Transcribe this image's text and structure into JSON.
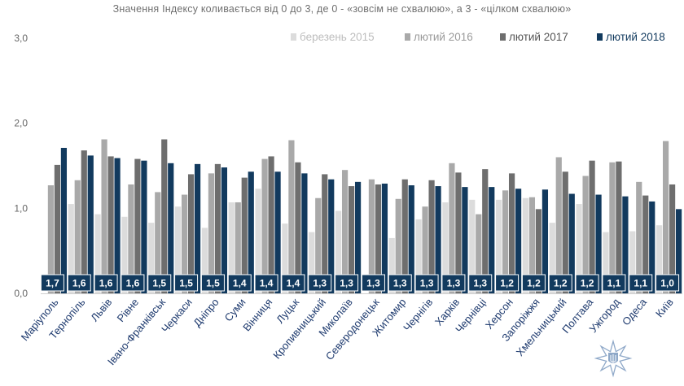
{
  "subtitle": "Значення Індексу коливається від 0 до 3, де 0 - «зовсім не схвалюю», а 3 - «цілком схвалюю»",
  "colors": {
    "s2015": "#dcdcdc",
    "s2016": "#a9a9a9",
    "s2017": "#6e6e6e",
    "s2018": "#123a5e",
    "label_box": "#123a5e",
    "category_text": "#1f3b6f",
    "axis_text": "#666666"
  },
  "emblem": {
    "name": "police-emblem",
    "color": "#8ea8c8"
  },
  "chart_data": {
    "type": "bar",
    "title": "",
    "xlabel": "",
    "ylabel": "",
    "ylim": [
      0,
      3
    ],
    "yticks": [
      0,
      1,
      2,
      3
    ],
    "ytick_labels": [
      "0,0",
      "1,0",
      "2,0",
      "3,0"
    ],
    "grid": false,
    "legend_position": "top-right",
    "categories": [
      "Маріуполь",
      "Тернопіль",
      "Львів",
      "Рівне",
      "Івано-Франківськ",
      "Черкаси",
      "Дніпро",
      "Суми",
      "Вінниця",
      "Луцьк",
      "Кропивницький",
      "Миколаїв",
      "Северодонецьк",
      "Житомир",
      "Чернігів",
      "Харків",
      "Чернівці",
      "Херсон",
      "Запоріжжя",
      "Хмельницький",
      "Полтава",
      "Ужгород",
      "Одеса",
      "Київ"
    ],
    "series": [
      {
        "name": "березень 2015",
        "values": [
          null,
          1.05,
          0.93,
          0.9,
          0.83,
          1.02,
          0.77,
          1.07,
          1.23,
          0.82,
          0.72,
          0.97,
          null,
          0.65,
          0.87,
          1.07,
          1.1,
          1.1,
          1.12,
          0.83,
          1.05,
          0.72,
          0.73,
          0.8
        ]
      },
      {
        "name": "лютий 2016",
        "values": [
          1.27,
          1.33,
          1.81,
          1.28,
          1.19,
          1.16,
          1.41,
          1.07,
          1.58,
          1.8,
          1.12,
          1.45,
          1.34,
          1.11,
          1.02,
          1.53,
          0.93,
          1.21,
          1.13,
          1.6,
          1.38,
          1.54,
          1.31,
          1.79
        ]
      },
      {
        "name": "лютий 2017",
        "values": [
          1.51,
          1.68,
          1.61,
          1.58,
          1.81,
          1.4,
          1.52,
          1.36,
          1.61,
          1.54,
          1.4,
          1.26,
          1.28,
          1.34,
          1.33,
          1.42,
          1.46,
          1.41,
          0.99,
          1.43,
          1.56,
          1.55,
          1.15,
          1.28
        ]
      },
      {
        "name": "лютий 2018",
        "values": [
          1.71,
          1.62,
          1.59,
          1.56,
          1.53,
          1.52,
          1.48,
          1.43,
          1.43,
          1.41,
          1.34,
          1.31,
          1.29,
          1.27,
          1.26,
          1.25,
          1.25,
          1.23,
          1.22,
          1.17,
          1.16,
          1.14,
          1.08,
          0.99
        ]
      }
    ],
    "data_labels": [
      "1,7",
      "1,6",
      "1,6",
      "1,6",
      "1,5",
      "1,5",
      "1,5",
      "1,4",
      "1,4",
      "1,4",
      "1,3",
      "1,3",
      "1,3",
      "1,3",
      "1,3",
      "1,3",
      "1,3",
      "1,2",
      "1,2",
      "1,2",
      "1,2",
      "1,1",
      "1,1",
      "1,0"
    ]
  }
}
